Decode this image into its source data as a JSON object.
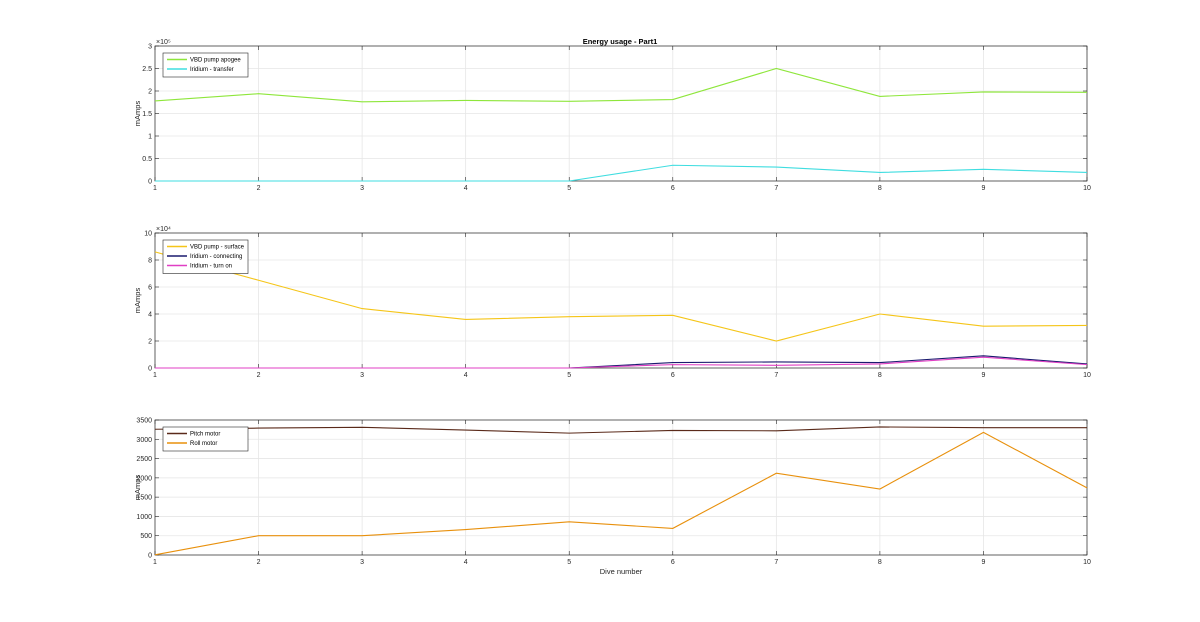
{
  "figure": {
    "title": "Energy usage - Part1"
  },
  "chart_data": [
    {
      "type": "line",
      "title": "Energy usage - Part1",
      "xlabel": "",
      "ylabel": "mAmps",
      "xlim": [
        1,
        10
      ],
      "ylim": [
        0,
        300000
      ],
      "xticks": [
        "1",
        "2",
        "3",
        "4",
        "5",
        "6",
        "7",
        "8",
        "9",
        "10"
      ],
      "yticks": [
        "0",
        "0.5",
        "1",
        "1.5",
        "2",
        "2.5",
        "3"
      ],
      "yticks_values": [
        0,
        50000,
        100000,
        150000,
        200000,
        250000,
        300000
      ],
      "exponent_label": "×10⁵",
      "grid": true,
      "legend_position": "top-left",
      "x": [
        1,
        2,
        3,
        4,
        5,
        6,
        7,
        8,
        9,
        10
      ],
      "series": [
        {
          "name": "VBD pump apogee",
          "color": "#8ee63b",
          "values": [
            178000,
            194000,
            176000,
            179000,
            177000,
            181000,
            250000,
            188000,
            198000,
            197000
          ]
        },
        {
          "name": "Iridium - transfer",
          "color": "#3fdde0",
          "values": [
            0,
            0,
            0,
            0,
            0,
            35000,
            31000,
            19000,
            26000,
            19000
          ]
        }
      ]
    },
    {
      "type": "line",
      "title": "",
      "xlabel": "",
      "ylabel": "mAmps",
      "xlim": [
        1,
        10
      ],
      "ylim": [
        0,
        100000
      ],
      "xticks": [
        "1",
        "2",
        "3",
        "4",
        "5",
        "6",
        "7",
        "8",
        "9",
        "10"
      ],
      "yticks": [
        "0",
        "2",
        "4",
        "6",
        "8",
        "10"
      ],
      "yticks_values": [
        0,
        20000,
        40000,
        60000,
        80000,
        100000
      ],
      "exponent_label": "×10⁴",
      "grid": true,
      "legend_position": "top-left",
      "x": [
        1,
        2,
        3,
        4,
        5,
        6,
        7,
        8,
        9,
        10
      ],
      "series": [
        {
          "name": "VBD pump - surface",
          "color": "#f5c518",
          "values": [
            86000,
            65000,
            44000,
            36000,
            38000,
            39000,
            20000,
            40000,
            31000,
            31500
          ]
        },
        {
          "name": "Iridium - connecting",
          "color": "#1a1a6e",
          "values": [
            0,
            0,
            0,
            0,
            0,
            4000,
            4500,
            4000,
            9000,
            3000
          ]
        },
        {
          "name": "Iridium - turn on",
          "color": "#e03fc4",
          "values": [
            0,
            0,
            0,
            0,
            0,
            2500,
            2000,
            3000,
            8000,
            2500
          ]
        }
      ]
    },
    {
      "type": "line",
      "title": "",
      "xlabel": "Dive number",
      "ylabel": "mAmps",
      "xlim": [
        1,
        10
      ],
      "ylim": [
        0,
        3500
      ],
      "xticks": [
        "1",
        "2",
        "3",
        "4",
        "5",
        "6",
        "7",
        "8",
        "9",
        "10"
      ],
      "yticks": [
        "0",
        "500",
        "1000",
        "1500",
        "2000",
        "2500",
        "3000",
        "3500"
      ],
      "yticks_values": [
        0,
        500,
        1000,
        1500,
        2000,
        2500,
        3000,
        3500
      ],
      "exponent_label": "",
      "grid": true,
      "legend_position": "top-left",
      "x": [
        1,
        2,
        3,
        4,
        5,
        6,
        7,
        8,
        9,
        10
      ],
      "series": [
        {
          "name": "Pitch motor",
          "color": "#5a2a1a",
          "values": [
            3260,
            3290,
            3310,
            3240,
            3160,
            3230,
            3220,
            3320,
            3300,
            3300
          ]
        },
        {
          "name": "Roll motor",
          "color": "#e8900c",
          "values": [
            5,
            500,
            500,
            660,
            860,
            690,
            2120,
            1710,
            3180,
            1740
          ]
        }
      ]
    }
  ]
}
